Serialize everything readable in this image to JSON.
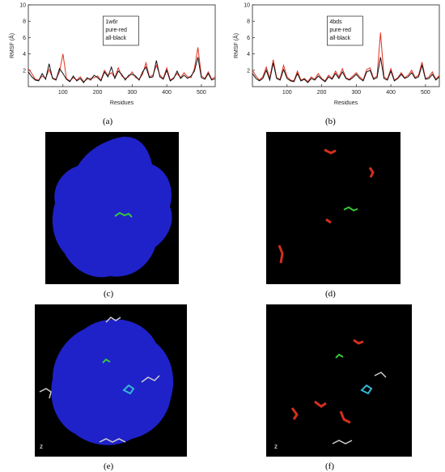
{
  "chart_data": [
    {
      "type": "line",
      "panel": "(a)",
      "xlabel": "Residues",
      "ylabel": "RMSF (Å)",
      "xlim": [
        0,
        540
      ],
      "ylim": [
        0,
        10
      ],
      "xticks": [
        100,
        200,
        300,
        400,
        500
      ],
      "yticks": [
        2,
        4,
        6,
        8,
        10
      ],
      "legend": [
        "1w6r",
        "pure-red",
        "all-black"
      ],
      "series": [
        {
          "name": "pure-red",
          "color": "#e0301e",
          "x": [
            0,
            10,
            20,
            30,
            40,
            50,
            60,
            70,
            80,
            90,
            100,
            110,
            120,
            130,
            140,
            150,
            160,
            170,
            180,
            190,
            200,
            210,
            220,
            230,
            240,
            250,
            260,
            270,
            280,
            290,
            300,
            310,
            320,
            330,
            340,
            350,
            360,
            370,
            380,
            390,
            400,
            410,
            420,
            430,
            440,
            450,
            460,
            470,
            480,
            490,
            500,
            510,
            520,
            530,
            540
          ],
          "y": [
            2.2,
            1.6,
            0.9,
            0.8,
            1.3,
            1.0,
            2.1,
            1.1,
            0.9,
            1.8,
            4.0,
            1.0,
            0.7,
            1.1,
            0.8,
            1.2,
            0.6,
            0.9,
            1.0,
            1.1,
            1.3,
            0.8,
            2.0,
            1.4,
            1.7,
            1.1,
            2.3,
            1.3,
            1.0,
            1.2,
            1.8,
            1.1,
            0.9,
            1.5,
            2.9,
            1.2,
            1.4,
            2.6,
            1.4,
            1.0,
            2.3,
            0.8,
            1.1,
            1.6,
            1.1,
            1.7,
            1.2,
            1.1,
            2.2,
            4.8,
            1.3,
            1.0,
            1.8,
            0.9,
            1.2
          ]
        },
        {
          "name": "all-black",
          "color": "#111111",
          "x": [
            0,
            10,
            20,
            30,
            40,
            50,
            60,
            70,
            80,
            90,
            100,
            110,
            120,
            130,
            140,
            150,
            160,
            170,
            180,
            190,
            200,
            210,
            220,
            230,
            240,
            250,
            260,
            270,
            280,
            290,
            300,
            310,
            320,
            330,
            340,
            350,
            360,
            370,
            380,
            390,
            400,
            410,
            420,
            430,
            440,
            450,
            460,
            470,
            480,
            490,
            500,
            510,
            520,
            530,
            540
          ],
          "y": [
            1.8,
            1.2,
            0.8,
            0.7,
            1.6,
            0.9,
            2.8,
            1.0,
            0.8,
            2.2,
            1.6,
            0.9,
            0.6,
            1.3,
            0.7,
            1.0,
            0.5,
            1.1,
            0.8,
            1.4,
            1.1,
            0.7,
            1.8,
            1.2,
            2.4,
            1.0,
            1.9,
            1.5,
            0.8,
            1.4,
            1.5,
            1.3,
            0.8,
            1.8,
            2.4,
            1.1,
            1.2,
            3.2,
            1.2,
            0.9,
            2.0,
            0.7,
            1.0,
            1.9,
            1.0,
            1.4,
            1.0,
            1.3,
            1.9,
            3.6,
            1.1,
            0.9,
            1.6,
            0.8,
            1.0
          ]
        }
      ]
    },
    {
      "type": "line",
      "panel": "(b)",
      "xlabel": "Residues",
      "ylabel": "RMSF (Å)",
      "xlim": [
        0,
        540
      ],
      "ylim": [
        0,
        10
      ],
      "xticks": [
        100,
        200,
        300,
        400,
        500
      ],
      "yticks": [
        2,
        4,
        6,
        8,
        10
      ],
      "legend": [
        "4bds",
        "pure-red",
        "all-black"
      ],
      "series": [
        {
          "name": "pure-red",
          "color": "#e0301e",
          "x": [
            0,
            10,
            20,
            30,
            40,
            50,
            60,
            70,
            80,
            90,
            100,
            110,
            120,
            130,
            140,
            150,
            160,
            170,
            180,
            190,
            200,
            210,
            220,
            230,
            240,
            250,
            260,
            270,
            280,
            290,
            300,
            310,
            320,
            330,
            340,
            350,
            360,
            370,
            380,
            390,
            400,
            410,
            420,
            430,
            440,
            450,
            460,
            470,
            480,
            490,
            500,
            510,
            520,
            530,
            540
          ],
          "y": [
            2.0,
            1.3,
            0.8,
            1.2,
            2.4,
            1.0,
            3.3,
            1.1,
            0.9,
            2.6,
            1.2,
            0.8,
            0.7,
            1.9,
            0.8,
            1.0,
            0.6,
            1.2,
            0.9,
            1.6,
            1.0,
            0.7,
            1.4,
            1.0,
            1.9,
            1.2,
            2.2,
            1.1,
            0.9,
            1.3,
            1.7,
            1.2,
            0.8,
            2.1,
            2.3,
            1.0,
            1.3,
            6.6,
            1.2,
            0.9,
            2.2,
            0.8,
            1.1,
            1.7,
            1.1,
            1.4,
            2.0,
            1.1,
            1.4,
            3.0,
            1.0,
            1.2,
            1.8,
            0.9,
            1.4
          ]
        },
        {
          "name": "all-black",
          "color": "#111111",
          "x": [
            0,
            10,
            20,
            30,
            40,
            50,
            60,
            70,
            80,
            90,
            100,
            110,
            120,
            130,
            140,
            150,
            160,
            170,
            180,
            190,
            200,
            210,
            220,
            230,
            240,
            250,
            260,
            270,
            280,
            290,
            300,
            310,
            320,
            330,
            340,
            350,
            360,
            370,
            380,
            390,
            400,
            410,
            420,
            430,
            440,
            450,
            460,
            470,
            480,
            490,
            500,
            510,
            520,
            530,
            540
          ],
          "y": [
            1.6,
            1.0,
            0.7,
            1.0,
            2.0,
            0.8,
            2.9,
            1.0,
            0.8,
            2.1,
            1.0,
            0.7,
            0.6,
            1.6,
            0.7,
            0.9,
            0.5,
            1.0,
            0.8,
            1.3,
            0.9,
            0.6,
            1.2,
            0.9,
            1.6,
            1.0,
            1.8,
            1.0,
            0.8,
            1.1,
            1.5,
            1.0,
            0.7,
            1.8,
            2.0,
            0.9,
            1.1,
            3.6,
            1.0,
            0.8,
            1.9,
            0.7,
            1.0,
            1.5,
            1.0,
            1.2,
            1.7,
            1.0,
            1.2,
            2.6,
            0.9,
            1.0,
            1.5,
            0.8,
            1.2
          ]
        }
      ]
    }
  ],
  "captions": {
    "a": "(a)",
    "b": "(b)",
    "c": "(c)",
    "d": "(d)",
    "e": "(e)",
    "f": "(f)"
  },
  "panel_labels": {
    "e_axis": "z",
    "f_axis": "z"
  },
  "colors": {
    "surface_blue": "#1f22c8",
    "background_black": "#000000",
    "ligand_green": "#37c83a",
    "sticks_red": "#d2301d",
    "sticks_cyan": "#36b7d6"
  }
}
